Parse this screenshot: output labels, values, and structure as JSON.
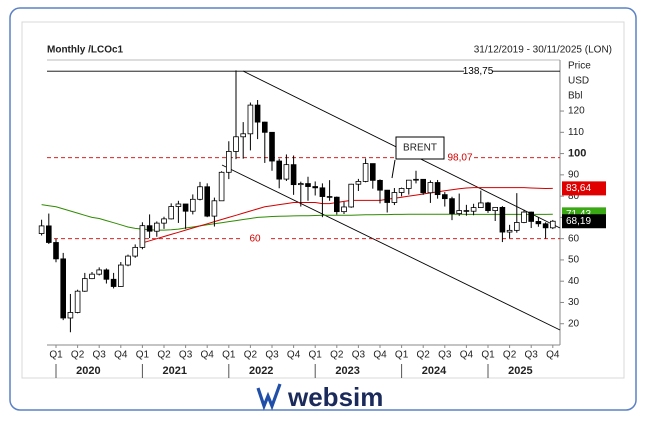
{
  "chart_data": {
    "type": "candlestick",
    "title": "Monthly /LCOc1",
    "subtitle": "31/12/2019 - 30/11/2025 (LON)",
    "y_axis_label": [
      "Price",
      "USD",
      "Bbl"
    ],
    "quarters": [
      "Q1",
      "Q2",
      "Q3",
      "Q4",
      "Q1",
      "Q2",
      "Q3",
      "Q4",
      "Q1",
      "Q2",
      "Q3",
      "Q4",
      "Q1",
      "Q2",
      "Q3",
      "Q4",
      "Q1",
      "Q2",
      "Q3",
      "Q4",
      "Q1",
      "Q2",
      "Q3",
      "Q4"
    ],
    "years": [
      "2020",
      "2021",
      "2022",
      "2023",
      "2024",
      "2025"
    ],
    "ylim": [
      10,
      144
    ],
    "yticks": [
      20,
      30,
      40,
      50,
      60,
      70,
      80,
      90,
      100,
      110,
      120
    ],
    "bold_tick": 100,
    "candles": {
      "up_color": "#ffffff",
      "down_color": "#000000",
      "open": [
        62.4,
        66.0,
        58.2,
        50.5,
        22.7,
        25.3,
        35.3,
        41.2,
        43.3,
        45.3,
        40.9,
        37.5,
        47.6,
        51.8,
        55.9,
        66.1,
        63.5,
        67.3,
        69.3,
        75.1,
        76.3,
        72.9,
        78.5,
        84.4,
        70.6,
        77.8,
        91.2,
        101.0,
        107.9,
        109.3,
        122.8,
        114.8,
        110.0,
        96.5,
        88.0,
        94.8,
        85.4,
        85.9,
        84.5,
        83.9,
        79.8,
        79.5,
        72.7,
        74.9,
        85.6,
        86.9,
        95.3,
        87.4,
        82.8,
        77.0,
        81.7,
        83.6,
        87.5,
        87.9,
        81.6,
        86.4,
        80.7,
        78.8,
        71.8,
        73.2,
        72.9,
        74.6,
        76.8,
        73.2,
        74.7,
        63.1,
        63.9,
        67.6,
        72.5,
        68.1,
        67.0,
        65.1
      ],
      "high": [
        68.9,
        71.8,
        59.9,
        53.3,
        34.0,
        36.0,
        43.9,
        44.3,
        46.5,
        46.0,
        43.9,
        49.0,
        52.5,
        57.3,
        67.7,
        71.4,
        68.1,
        70.3,
        76.6,
        77.8,
        76.3,
        80.8,
        86.7,
        86.0,
        79.3,
        91.7,
        105.8,
        139.1,
        114.8,
        124.0,
        125.2,
        115.0,
        110.0,
        97.6,
        99.6,
        99.1,
        86.8,
        89.1,
        86.9,
        86.0,
        87.5,
        79.8,
        77.3,
        85.8,
        88.1,
        97.7,
        95.3,
        87.9,
        82.9,
        83.8,
        84.0,
        87.6,
        91.9,
        88.0,
        87.4,
        87.6,
        81.9,
        79.7,
        81.2,
        75.9,
        76.4,
        82.6,
        77.3,
        74.9,
        75.3,
        66.5,
        81.4,
        73.6,
        72.7,
        70.0,
        67.7,
        68.8
      ],
      "low": [
        61.5,
        57.5,
        48.9,
        21.7,
        16.0,
        24.9,
        35.0,
        41.0,
        42.7,
        38.9,
        36.6,
        37.3,
        47.0,
        51.0,
        55.0,
        60.3,
        60.9,
        64.6,
        69.0,
        67.4,
        64.6,
        71.4,
        78.0,
        70.1,
        65.7,
        77.8,
        88.0,
        97.4,
        97.6,
        101.5,
        106.8,
        95.6,
        91.9,
        83.7,
        87.1,
        80.6,
        75.1,
        77.8,
        80.3,
        70.1,
        77.8,
        71.3,
        71.6,
        74.5,
        82.4,
        86.5,
        83.5,
        76.6,
        72.3,
        75.8,
        79.9,
        80.7,
        86.0,
        80.6,
        76.8,
        78.8,
        75.1,
        68.7,
        70.7,
        70.8,
        71.0,
        74.4,
        72.1,
        68.3,
        58.4,
        60.2,
        62.8,
        67.3,
        65.0,
        65.6,
        60.1,
        64.5
      ],
      "close": [
        66.0,
        58.2,
        50.5,
        22.7,
        25.3,
        35.3,
        41.2,
        43.3,
        45.3,
        40.9,
        37.5,
        47.6,
        51.8,
        55.9,
        66.1,
        63.5,
        67.3,
        69.3,
        75.1,
        76.3,
        72.9,
        78.5,
        84.4,
        70.6,
        77.8,
        91.2,
        101.0,
        107.9,
        109.3,
        122.8,
        114.8,
        110.0,
        96.5,
        88.0,
        94.8,
        85.4,
        85.9,
        84.5,
        83.9,
        79.8,
        79.5,
        72.7,
        74.9,
        85.6,
        86.9,
        95.3,
        87.4,
        82.8,
        77.0,
        81.7,
        83.6,
        87.5,
        87.9,
        81.6,
        86.4,
        80.7,
        78.8,
        71.8,
        73.2,
        72.9,
        74.6,
        76.8,
        73.2,
        74.7,
        63.1,
        63.9,
        67.6,
        72.5,
        68.1,
        67.0,
        65.1,
        68.19
      ]
    },
    "series": [
      {
        "color": "#2e8b00",
        "values": [
          76,
          75.5,
          75,
          74,
          73,
          72,
          71,
          70,
          69.5,
          68.5,
          67.5,
          66.5,
          65.5,
          64.8,
          64.5,
          64.2,
          64,
          64,
          64.2,
          64.5,
          65,
          65.5,
          66,
          66.5,
          67,
          67.5,
          68,
          68.5,
          69,
          69.5,
          70,
          70.2,
          70.4,
          70.5,
          70.6,
          70.7,
          70.8,
          70.8,
          70.9,
          71,
          71,
          71,
          71,
          71,
          71.1,
          71.2,
          71.2,
          71.3,
          71.3,
          71.4,
          71.4,
          71.5,
          71.5,
          71.5,
          71.5,
          71.5,
          71.5,
          71.5,
          71.5,
          71.4,
          71.4,
          71.4,
          71.4,
          71.4,
          71.4,
          71.4,
          71.4,
          71.4,
          71.4,
          71.4,
          71.4,
          71.43
        ]
      },
      {
        "color": "#d40000",
        "values": [
          null,
          null,
          null,
          null,
          null,
          null,
          null,
          null,
          null,
          null,
          null,
          null,
          null,
          null,
          58,
          59,
          60,
          61,
          62,
          63,
          64,
          65,
          66,
          67,
          68,
          69,
          70,
          71,
          72,
          73,
          74,
          75,
          75.5,
          76,
          76.5,
          77,
          77,
          77,
          77,
          76.5,
          76.5,
          77,
          77.5,
          78,
          78,
          78,
          78,
          78,
          78.5,
          79,
          79.5,
          80,
          80.5,
          81,
          81.5,
          82,
          82.5,
          83,
          83.5,
          83.8,
          84,
          84,
          84,
          84,
          84,
          84,
          84,
          84,
          83.8,
          83.7,
          83.6,
          83.64
        ]
      }
    ],
    "levels": [
      {
        "value": 138.75,
        "label": "138,75",
        "color": "#000000",
        "dashed": false
      },
      {
        "value": 98.07,
        "label": "98,07",
        "color": "#d40000",
        "dashed": true
      },
      {
        "value": 60,
        "label": "60",
        "color": "#d40000",
        "dashed": true
      }
    ],
    "price_labels": [
      {
        "value": 83.64,
        "label": "83,64",
        "color": "#e00000"
      },
      {
        "value": 71.43,
        "label": "71,43",
        "color": "#3aa815"
      },
      {
        "value": 68.19,
        "label": "68,19",
        "color": "#000000"
      }
    ],
    "annotation": "BRENT",
    "brand": "websim"
  }
}
